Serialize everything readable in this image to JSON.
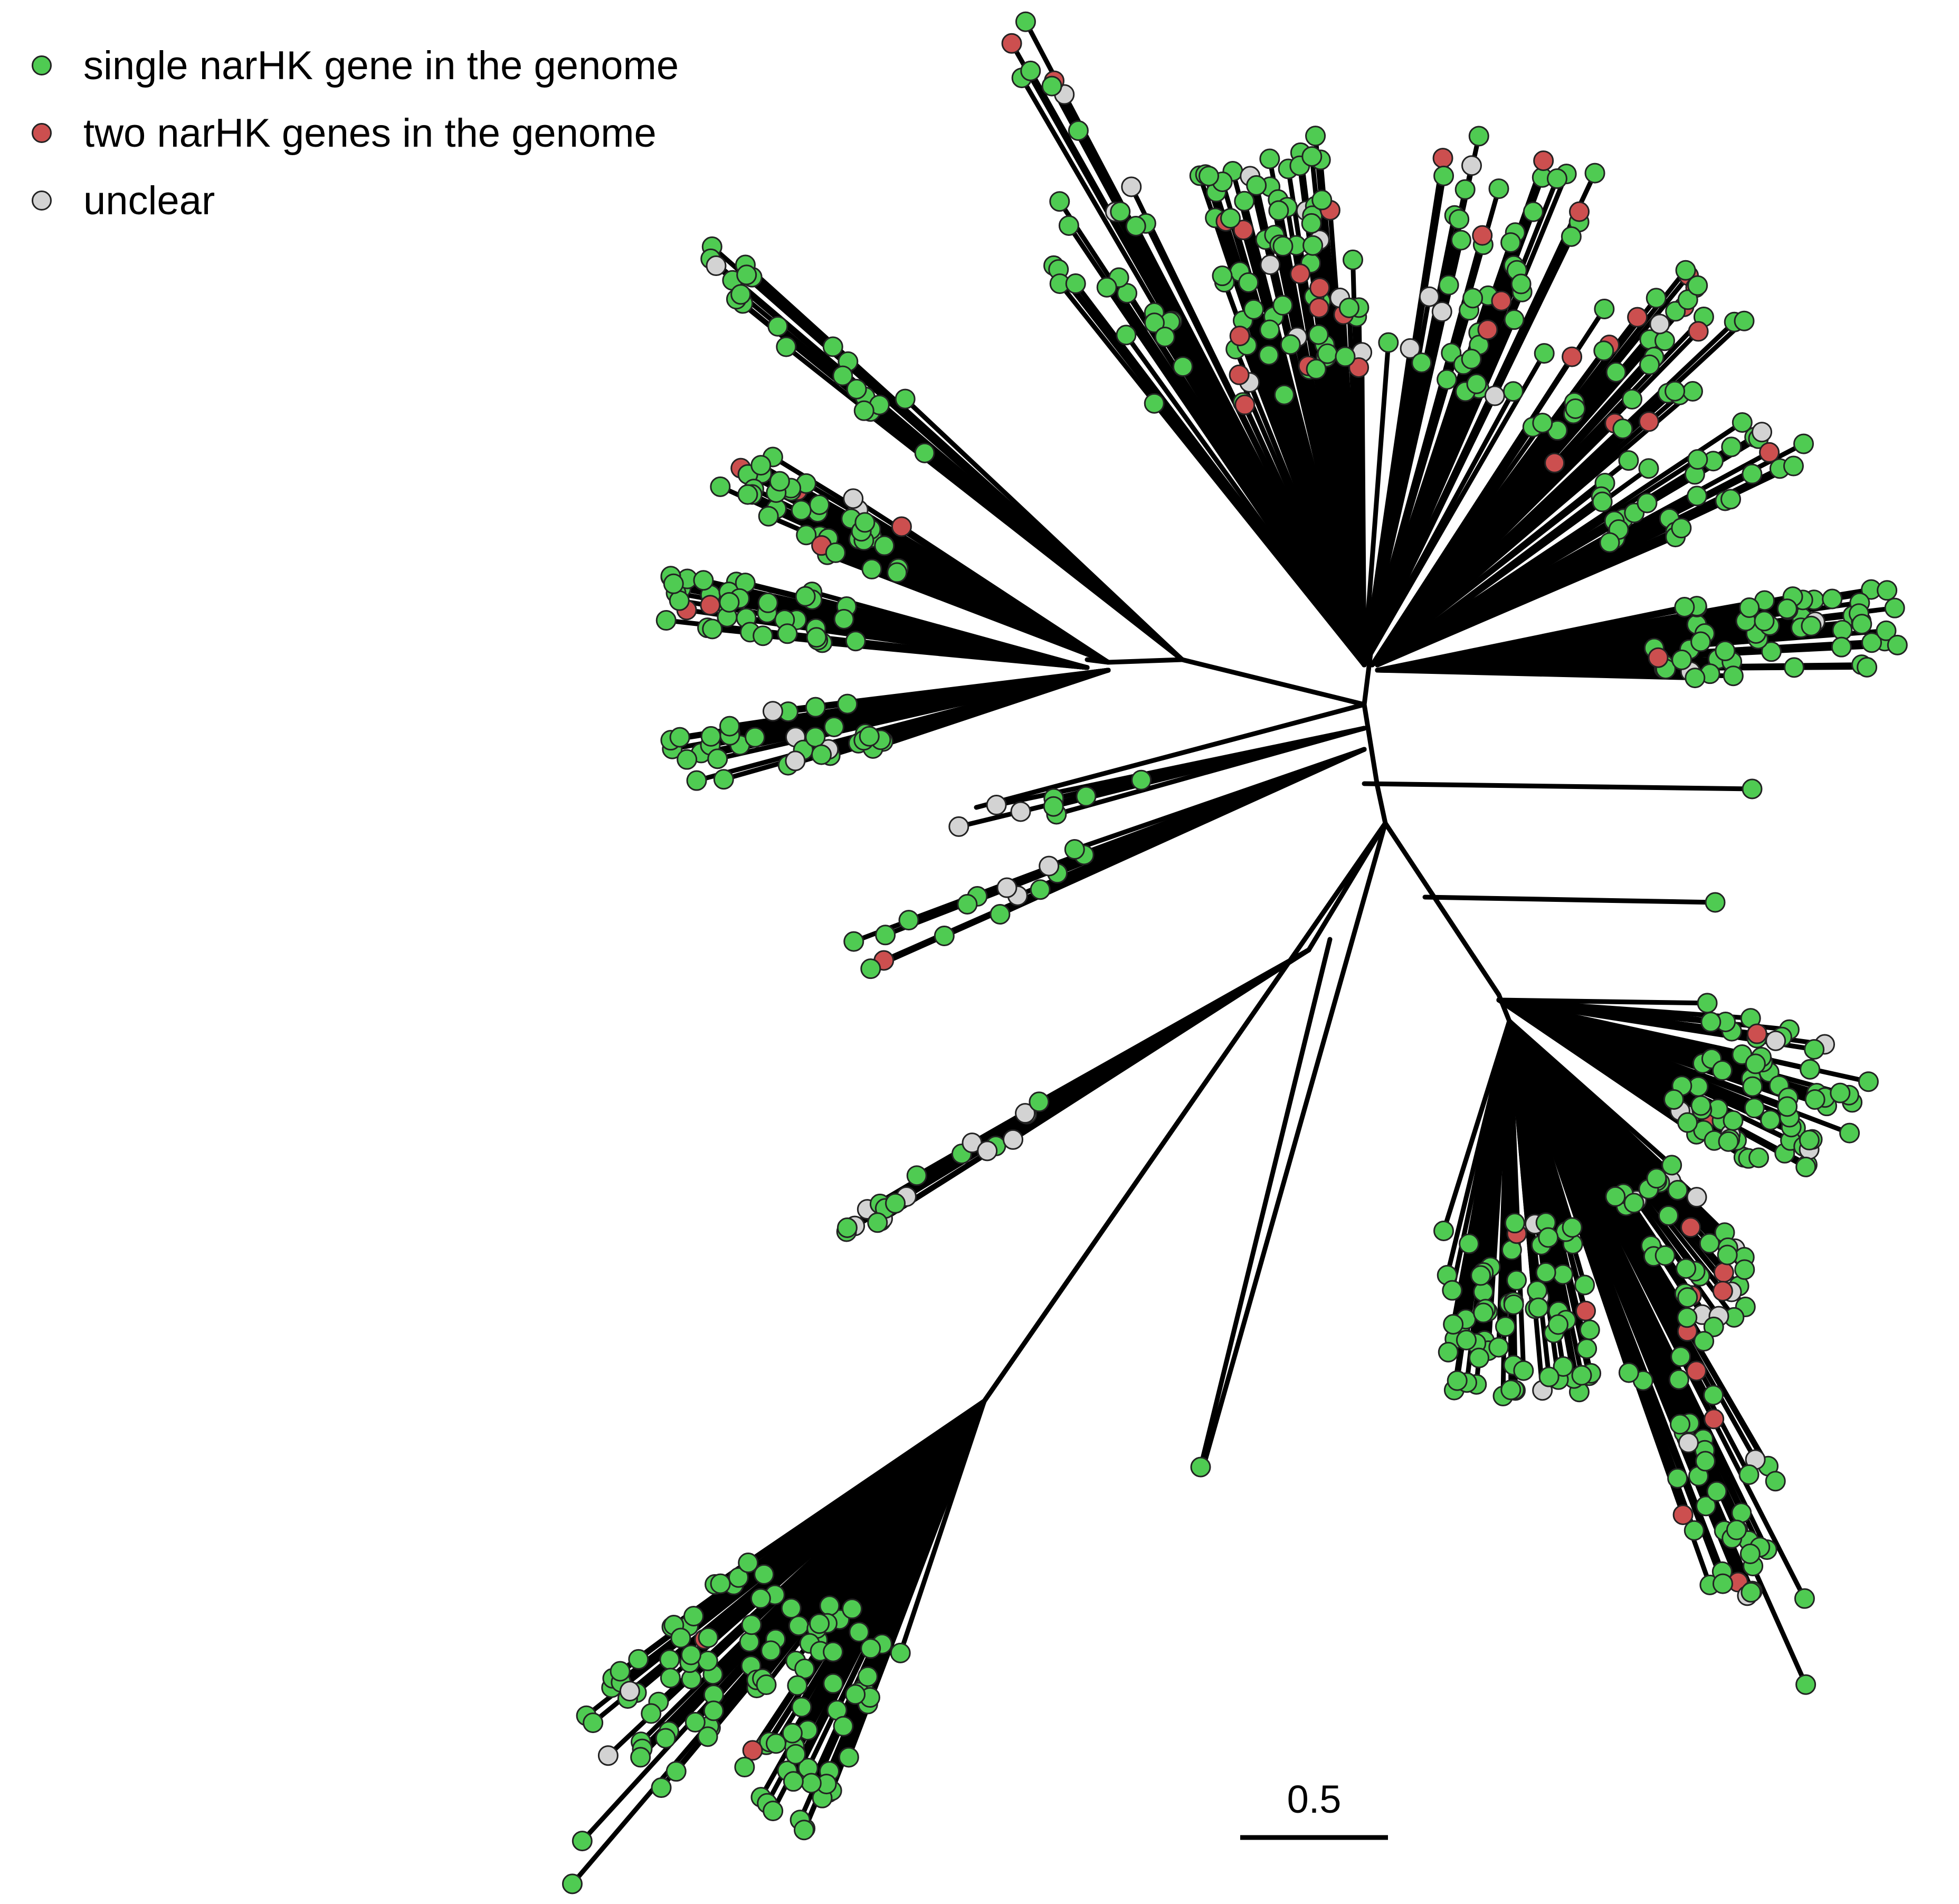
{
  "legend": {
    "items": [
      {
        "label": "single narHK gene in the genome",
        "color": "#4fcb52"
      },
      {
        "label": "two narHK genes in the genome",
        "color": "#cc4f4f"
      },
      {
        "label": "unclear",
        "color": "#d3d3d3"
      }
    ]
  },
  "scale_bar": {
    "label": "0.5",
    "value": 0.5
  },
  "colors": {
    "branch": "#000000",
    "outline": "#222222"
  }
}
